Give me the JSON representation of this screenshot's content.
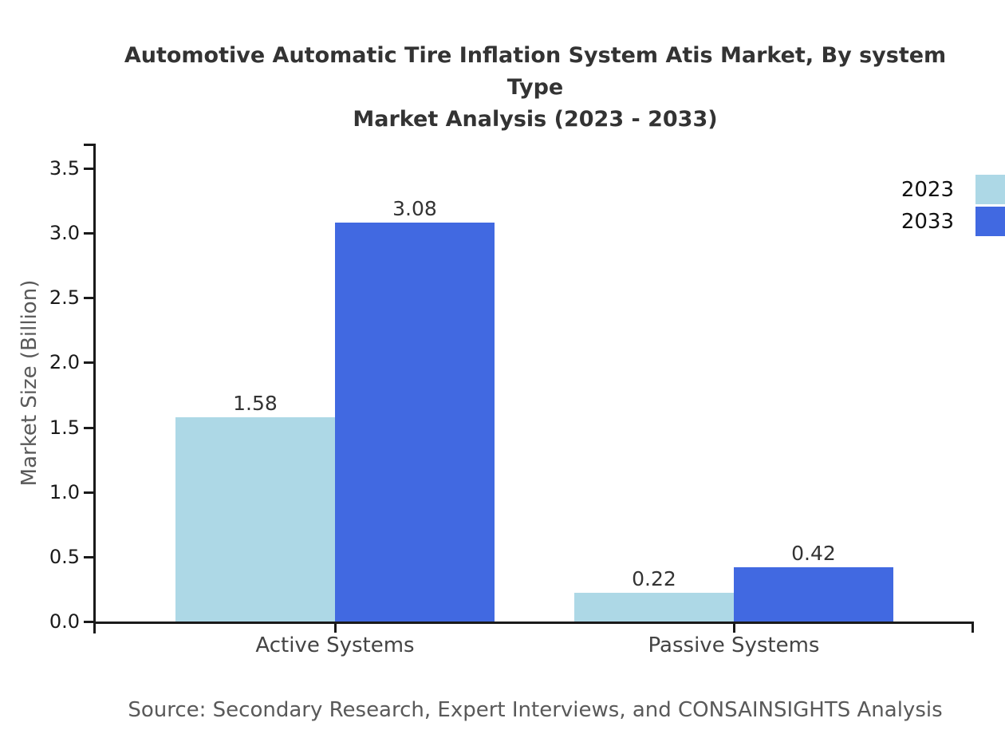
{
  "title": {
    "line1": "Automotive Automatic Tire Inflation System Atis Market, By system Type",
    "line2": "Market Analysis (2023 - 2033)"
  },
  "y_axis": {
    "label": "Market Size (Billion)"
  },
  "source": "Source: Secondary Research, Expert Interviews, and CONSAINSIGHTS Analysis",
  "colors": {
    "series_2023": "#add8e6",
    "series_2033": "#4169e1",
    "axis": "#1a1a1a",
    "title_text": "#333333",
    "muted_text": "#595959"
  },
  "chart_data": {
    "type": "bar",
    "title": "Automotive Automatic Tire Inflation System Atis Market, By system Type Market Analysis (2023 - 2033)",
    "categories": [
      "Active Systems",
      "Passive Systems"
    ],
    "series": [
      {
        "name": "2023",
        "color": "#add8e6",
        "values": [
          1.58,
          0.22
        ],
        "value_labels": [
          "1.58",
          "0.22"
        ]
      },
      {
        "name": "2033",
        "color": "#4169e1",
        "values": [
          3.08,
          0.42
        ],
        "value_labels": [
          "3.08",
          "0.42"
        ]
      }
    ],
    "xlabel": "",
    "ylabel": "Market Size (Billion)",
    "ylim": [
      0,
      3.7
    ],
    "yticks": [
      0.0,
      0.5,
      1.0,
      1.5,
      2.0,
      2.5,
      3.0,
      3.5
    ],
    "ytick_labels": [
      "0.0",
      "0.5",
      "1.0",
      "1.5",
      "2.0",
      "2.5",
      "3.0",
      "3.5"
    ],
    "grid": false,
    "legend_position": "upper-right-outside",
    "source_note": "Source: Secondary Research, Expert Interviews, and CONSAINSIGHTS Analysis"
  }
}
